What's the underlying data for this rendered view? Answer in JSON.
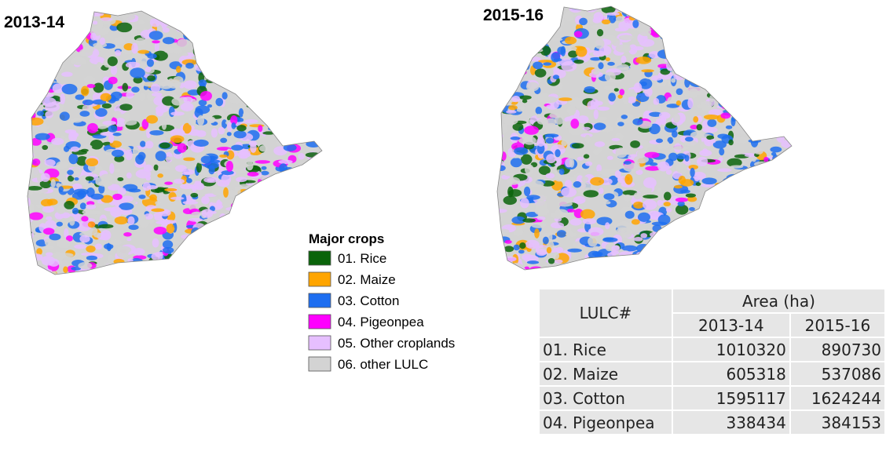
{
  "maps": [
    {
      "title": "2013-14"
    },
    {
      "title": "2015-16"
    }
  ],
  "legend": {
    "title": "Major crops",
    "items": [
      {
        "label": "01. Rice",
        "color": "#0a640a"
      },
      {
        "label": "02. Maize",
        "color": "#ffa500"
      },
      {
        "label": "03. Cotton",
        "color": "#1e6ef0"
      },
      {
        "label": "04. Pigeonpea",
        "color": "#ff00ff"
      },
      {
        "label": "05. Other croplands",
        "color": "#e6bfff"
      },
      {
        "label": "06. other LULC",
        "color": "#d3d3d3"
      }
    ]
  },
  "table": {
    "header": {
      "lulc": "LULC#",
      "area": "Area (ha)",
      "years": [
        "2013-14",
        "2015-16"
      ]
    },
    "rows": [
      [
        "01. Rice",
        1010320,
        890730
      ],
      [
        "02. Maize",
        605318,
        537086
      ],
      [
        "03. Cotton",
        1595117,
        1624244
      ],
      [
        "04. Pigeonpea",
        338434,
        384153
      ]
    ]
  }
}
